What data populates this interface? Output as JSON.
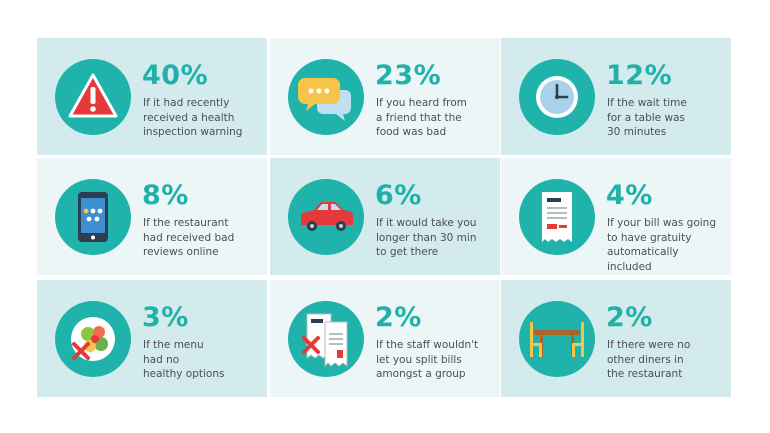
{
  "cells": [
    {
      "value": "40%",
      "lines": [
        "If it had recently",
        "received a health",
        "inspection warning"
      ]
    },
    {
      "value": "23%",
      "lines": [
        "If you heard from",
        "a friend that the",
        "food was bad"
      ]
    },
    {
      "value": "12%",
      "lines": [
        "If the wait time",
        "for a table was",
        "30 minutes"
      ]
    },
    {
      "value": "8%",
      "lines": [
        "If the restaurant",
        "had received bad",
        "reviews online"
      ]
    },
    {
      "value": "6%",
      "lines": [
        "If it would take you",
        "longer than 30 min",
        "to get there"
      ]
    },
    {
      "value": "4%",
      "lines": [
        "If your bill was going",
        "to have gratuity",
        "automatically",
        "included"
      ]
    },
    {
      "value": "3%",
      "lines": [
        "If the menu",
        "had no",
        "healthy options"
      ]
    },
    {
      "value": "2%",
      "lines": [
        "If the staff wouldn't",
        "let you split bills",
        "amongst a group"
      ]
    },
    {
      "value": "2%",
      "lines": [
        "If there were no",
        "other diners in",
        "the restaurant"
      ]
    }
  ]
}
